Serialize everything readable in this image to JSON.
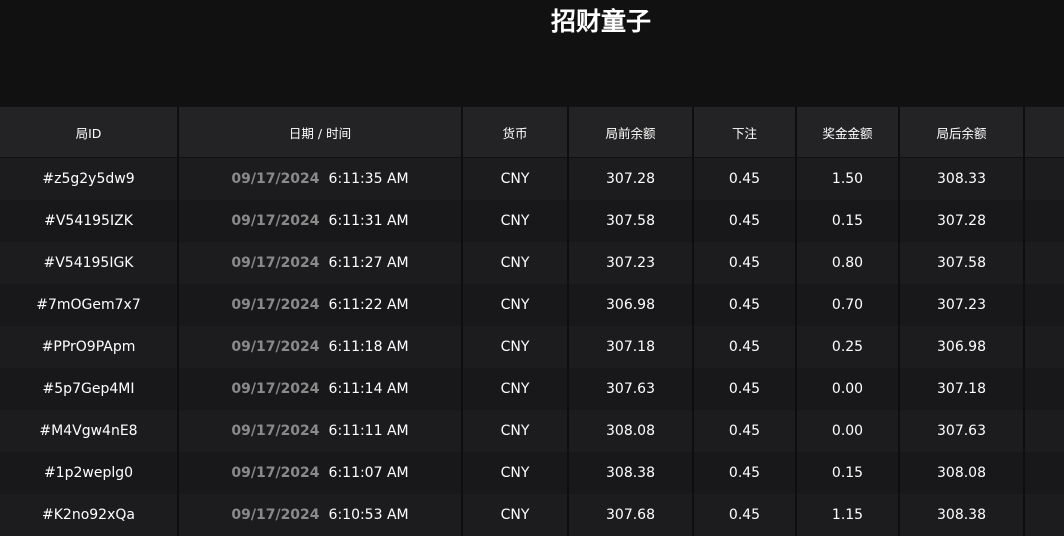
{
  "header": {
    "title": "招财童子"
  },
  "table": {
    "columns": [
      "局ID",
      "日期 / 时间",
      "货币",
      "局前余额",
      "下注",
      "奖金金额",
      "局后余额"
    ],
    "rows": [
      [
        "#z5g2y5dw9",
        "09/17/2024",
        "6:11:35 AM",
        "CNY",
        "307.28",
        "0.45",
        "1.50",
        "308.33"
      ],
      [
        "#V54195IZK",
        "09/17/2024",
        "6:11:31 AM",
        "CNY",
        "307.58",
        "0.45",
        "0.15",
        "307.28"
      ],
      [
        "#V54195IGK",
        "09/17/2024",
        "6:11:27 AM",
        "CNY",
        "307.23",
        "0.45",
        "0.80",
        "307.58"
      ],
      [
        "#7mOGem7x7",
        "09/17/2024",
        "6:11:22 AM",
        "CNY",
        "306.98",
        "0.45",
        "0.70",
        "307.23"
      ],
      [
        "#PPrO9PApm",
        "09/17/2024",
        "6:11:18 AM",
        "CNY",
        "307.18",
        "0.45",
        "0.25",
        "306.98"
      ],
      [
        "#5p7Gep4MI",
        "09/17/2024",
        "6:11:14 AM",
        "CNY",
        "307.63",
        "0.45",
        "0.00",
        "307.18"
      ],
      [
        "#M4Vgw4nE8",
        "09/17/2024",
        "6:11:11 AM",
        "CNY",
        "308.08",
        "0.45",
        "0.00",
        "307.63"
      ],
      [
        "#1p2weplg0",
        "09/17/2024",
        "6:11:07 AM",
        "CNY",
        "308.38",
        "0.45",
        "0.15",
        "308.08"
      ],
      [
        "#K2no92xQa",
        "09/17/2024",
        "6:10:53 AM",
        "CNY",
        "307.68",
        "0.45",
        "1.15",
        "308.38"
      ]
    ]
  }
}
